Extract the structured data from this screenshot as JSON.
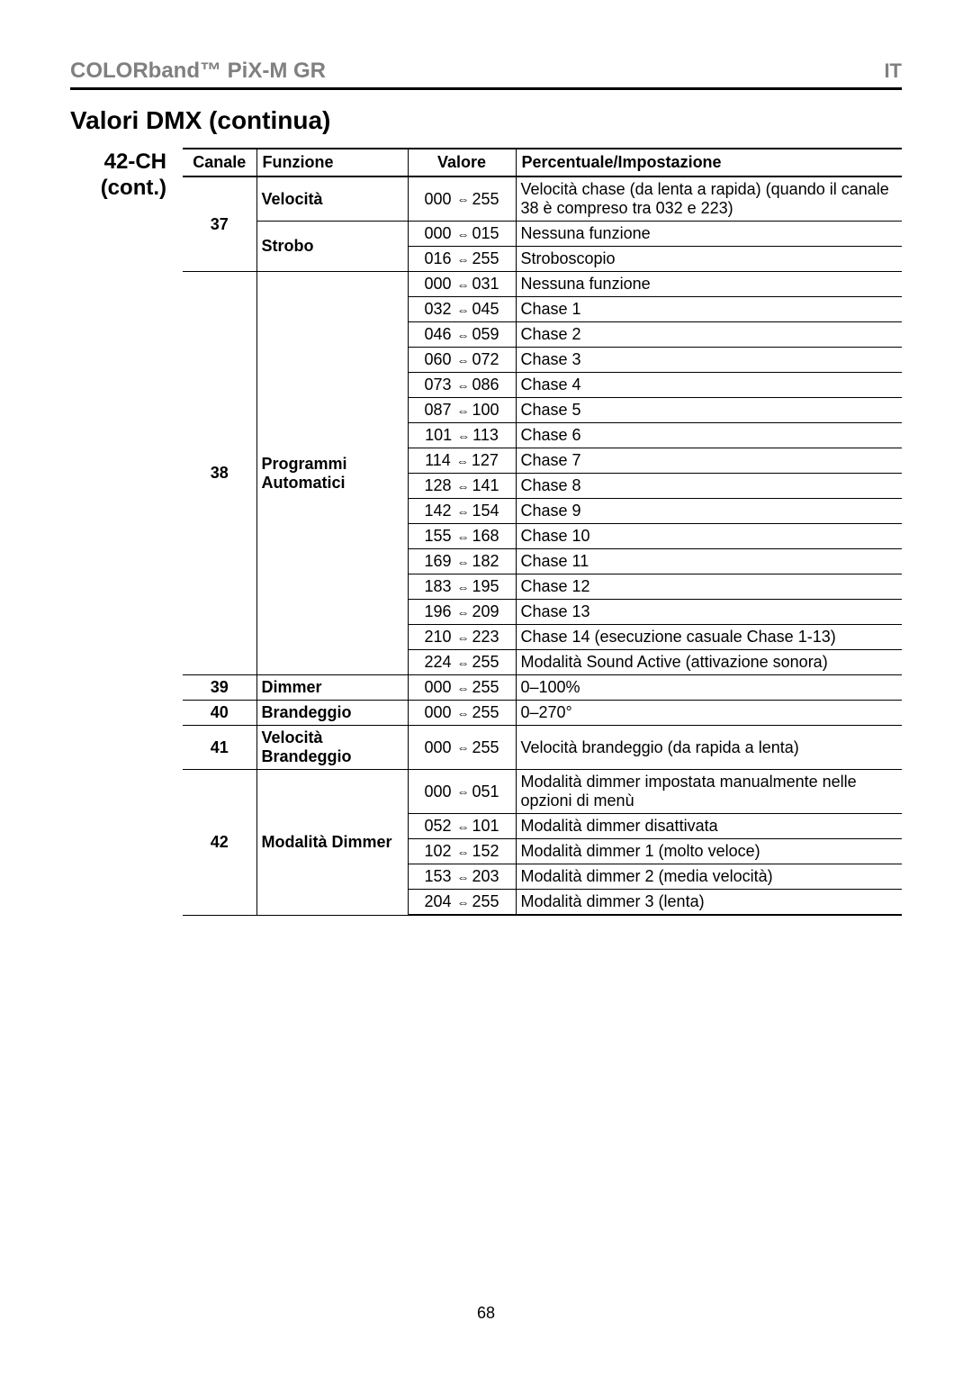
{
  "header": {
    "title": "COLORband™ PiX-M GR",
    "lang": "IT"
  },
  "page_title": "Valori DMX (continua)",
  "section_label": "42-CH (cont.)",
  "page_number": "68",
  "columns": {
    "canale": "Canale",
    "funzione": "Funzione",
    "valore": "Valore",
    "perc": "Percentuale/Impostazione"
  },
  "rows": [
    {
      "canale": "37",
      "canale_rowspan": 3,
      "funzione": "Velocità",
      "funzione_rowspan": 1,
      "from": "000",
      "to": "255",
      "perc": "Velocità chase (da lenta a rapida) (quando il canale 38 è compreso tra 032 e 223)"
    },
    {
      "funzione": "Strobo",
      "funzione_rowspan": 2,
      "from": "000",
      "to": "015",
      "perc": "Nessuna funzione"
    },
    {
      "from": "016",
      "to": "255",
      "perc": "Stroboscopio"
    },
    {
      "canale": "38",
      "canale_rowspan": 16,
      "funzione": "Programmi Automatici",
      "funzione_rowspan": 16,
      "from": "000",
      "to": "031",
      "perc": "Nessuna funzione"
    },
    {
      "from": "032",
      "to": "045",
      "perc": "Chase 1"
    },
    {
      "from": "046",
      "to": "059",
      "perc": "Chase 2"
    },
    {
      "from": "060",
      "to": "072",
      "perc": "Chase 3"
    },
    {
      "from": "073",
      "to": "086",
      "perc": "Chase 4"
    },
    {
      "from": "087",
      "to": "100",
      "perc": "Chase 5"
    },
    {
      "from": "101",
      "to": "113",
      "perc": "Chase 6"
    },
    {
      "from": "114",
      "to": "127",
      "perc": "Chase 7"
    },
    {
      "from": "128",
      "to": "141",
      "perc": "Chase 8"
    },
    {
      "from": "142",
      "to": "154",
      "perc": "Chase 9"
    },
    {
      "from": "155",
      "to": "168",
      "perc": "Chase 10"
    },
    {
      "from": "169",
      "to": "182",
      "perc": "Chase 11"
    },
    {
      "from": "183",
      "to": "195",
      "perc": "Chase 12"
    },
    {
      "from": "196",
      "to": "209",
      "perc": "Chase 13"
    },
    {
      "from": "210",
      "to": "223",
      "perc": "Chase 14 (esecuzione casuale Chase 1-13)"
    },
    {
      "from": "224",
      "to": "255",
      "perc": "Modalità Sound Active (attivazione sonora)"
    },
    {
      "canale": "39",
      "canale_rowspan": 1,
      "funzione": "Dimmer",
      "funzione_rowspan": 1,
      "from": "000",
      "to": "255",
      "perc": "0–100%"
    },
    {
      "canale": "40",
      "canale_rowspan": 1,
      "funzione": "Brandeggio",
      "funzione_rowspan": 1,
      "from": "000",
      "to": "255",
      "perc": "0–270°"
    },
    {
      "canale": "41",
      "canale_rowspan": 1,
      "funzione": "Velocità Brandeggio",
      "funzione_rowspan": 1,
      "from": "000",
      "to": "255",
      "perc": "Velocità brandeggio (da rapida a lenta)"
    },
    {
      "canale": "42",
      "canale_rowspan": 5,
      "funzione": "Modalità Dimmer",
      "funzione_rowspan": 5,
      "from": "000",
      "to": "051",
      "perc": "Modalità dimmer impostata manualmente nelle opzioni di menù"
    },
    {
      "from": "052",
      "to": "101",
      "perc": "Modalità dimmer disattivata"
    },
    {
      "from": "102",
      "to": "152",
      "perc": "Modalità dimmer 1 (molto veloce)"
    },
    {
      "from": "153",
      "to": "203",
      "perc": "Modalità dimmer 2 (media velocità)"
    },
    {
      "from": "204",
      "to": "255",
      "perc": "Modalità dimmer 3 (lenta)",
      "last": true
    }
  ]
}
